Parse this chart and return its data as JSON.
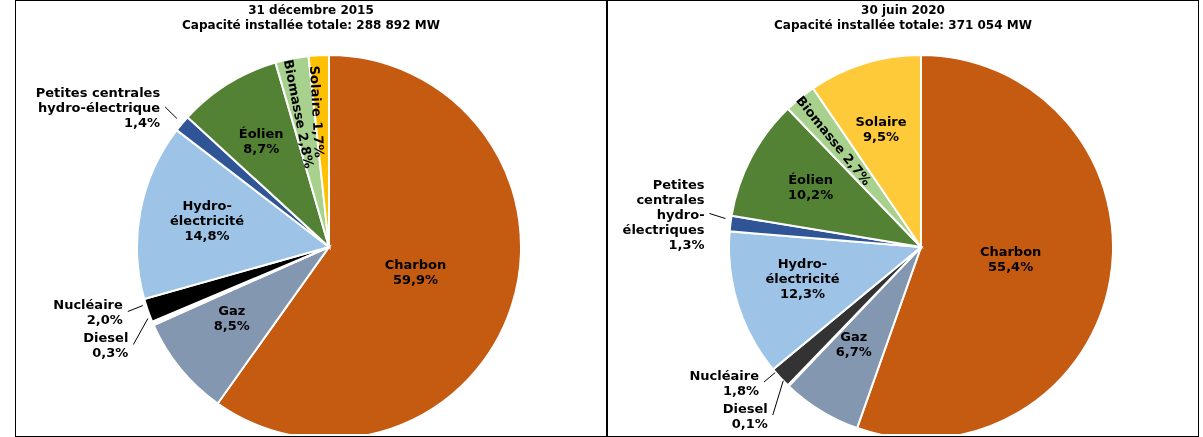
{
  "chart_data": [
    {
      "type": "pie",
      "title": "31 décembre 2015",
      "subtitle": "Capacité installée totale: 288 892 MW",
      "categories": [
        "Charbon",
        "Gaz",
        "Diesel",
        "Nucléaire",
        "Hydro-\nélectricité",
        "Petites centrales\nhydro-électrique",
        "Éolien",
        "Biomasse",
        "Solaire"
      ],
      "values": [
        59.9,
        8.5,
        0.3,
        2.0,
        14.8,
        1.4,
        8.7,
        2.8,
        1.7
      ],
      "value_labels": [
        "59,9%",
        "8,5%",
        "0,3%",
        "2,0%",
        "14,8%",
        "1,4%",
        "8,7%",
        "2,8%",
        "1,7%"
      ],
      "colors": [
        "#c55a11",
        "#8497b0",
        "#ffffff",
        "#000000",
        "#9dc3e6",
        "#2f5597",
        "#548235",
        "#a9d18e",
        "#ffc000"
      ],
      "legend": false
    },
    {
      "type": "pie",
      "title": "30 juin 2020",
      "subtitle": "Capacité installée totale: 371 054 MW",
      "categories": [
        "Charbon",
        "Gaz",
        "Diesel",
        "Nucléaire",
        "Hydro-\nélectricité",
        "Petites\ncentrales\nhydro-\nélectriques",
        "Éolien",
        "Biomasse",
        "Solaire"
      ],
      "values": [
        55.4,
        6.7,
        0.1,
        1.8,
        12.3,
        1.3,
        10.2,
        2.7,
        9.5
      ],
      "value_labels": [
        "55,4%",
        "6,7%",
        "0,1%",
        "1,8%",
        "12,3%",
        "1,3%",
        "10,2%",
        "2,7%",
        "9,5%"
      ],
      "colors": [
        "#c55a11",
        "#8497b0",
        "#ffffff",
        "#333333",
        "#9dc3e6",
        "#2f5597",
        "#548235",
        "#a9d18e",
        "#ffca3a"
      ],
      "legend": false
    }
  ]
}
